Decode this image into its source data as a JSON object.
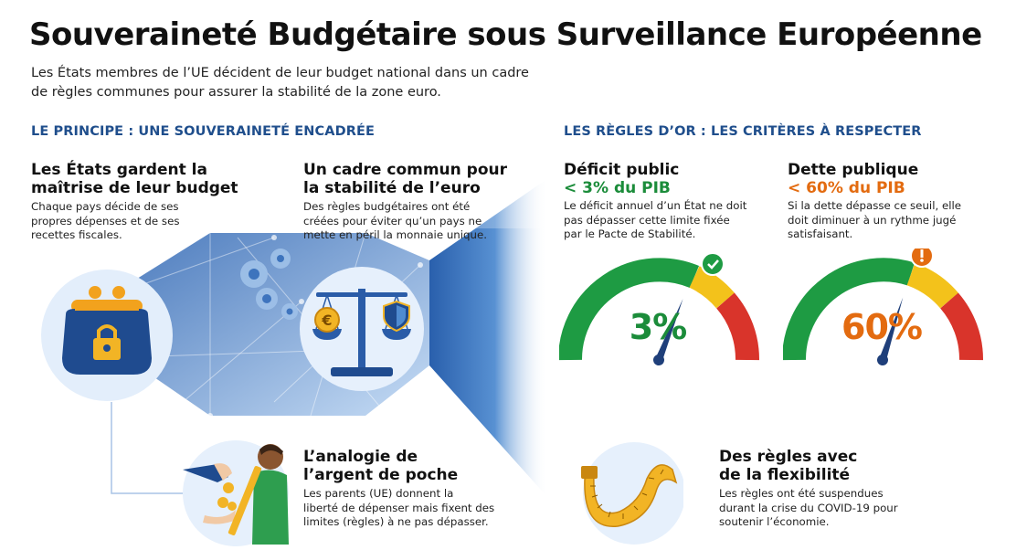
{
  "title": "Souveraineté Budgétaire sous Surveillance Européenne",
  "subtitle": "Les États membres de l’UE décident de leur budget national dans un cadre de règles communes pour assurer la stabilité de la zone euro.",
  "sections": {
    "principle": "LE PRINCIPE : UNE SOUVERAINETÉ ENCADRÉE",
    "rules": "LES RÈGLES D’OR : LES CRITÈRES À RESPECTER"
  },
  "principle": {
    "control": {
      "title_1": "Les États gardent la",
      "title_2": "maîtrise de leur budget",
      "text_1": "Chaque pays décide de ses",
      "text_2": "propres dépenses et de ses",
      "text_3": "recettes fiscales."
    },
    "framework": {
      "title_1": "Un cadre commun pour",
      "title_2": "la stabilité de l’euro",
      "text_1": "Des règles budgétaires ont été",
      "text_2": "créées pour éviter qu’un pays ne",
      "text_3": "mette en péril la monnaie unique."
    },
    "analogy": {
      "title_1": "L’analogie de",
      "title_2": "l’argent de poche",
      "text_1": "Les parents (UE) donnent la",
      "text_2": "liberté de dépenser mais fixent des",
      "text_3": "limites (règles) à ne pas dépasser."
    }
  },
  "criteria": {
    "deficit": {
      "title": "Déficit public",
      "limit": "< 3% du PIB",
      "text_1": "Le déficit annuel d’un État ne doit",
      "text_2": "pas dépasser cette limite fixée",
      "text_3": "par le Pacte de Stabilité.",
      "gauge_value": "3%",
      "status_icon": "check-icon",
      "level": 0.62,
      "color": "#1b8c3a"
    },
    "debt": {
      "title": "Dette publique",
      "limit": "< 60% du PIB",
      "text_1": "Si la dette dépasse ce seuil, elle",
      "text_2": "doit diminuer à un rythme jugé",
      "text_3": "satisfaisant.",
      "gauge_value": "60%",
      "status_icon": "warning-icon",
      "level": 0.6,
      "color": "#e36b10"
    },
    "flexibility": {
      "title_1": "Des règles avec",
      "title_2": "de la flexibilité",
      "text_1": "Les règles ont été suspendues",
      "text_2": "durant la crise du COVID-19 pour",
      "text_3": "soutenir l’économie."
    }
  },
  "colors": {
    "section_blue": "#1f4e8c",
    "gauge_green": "#1e9b43",
    "gauge_yellow": "#f3c21b",
    "gauge_red": "#d9342b"
  }
}
